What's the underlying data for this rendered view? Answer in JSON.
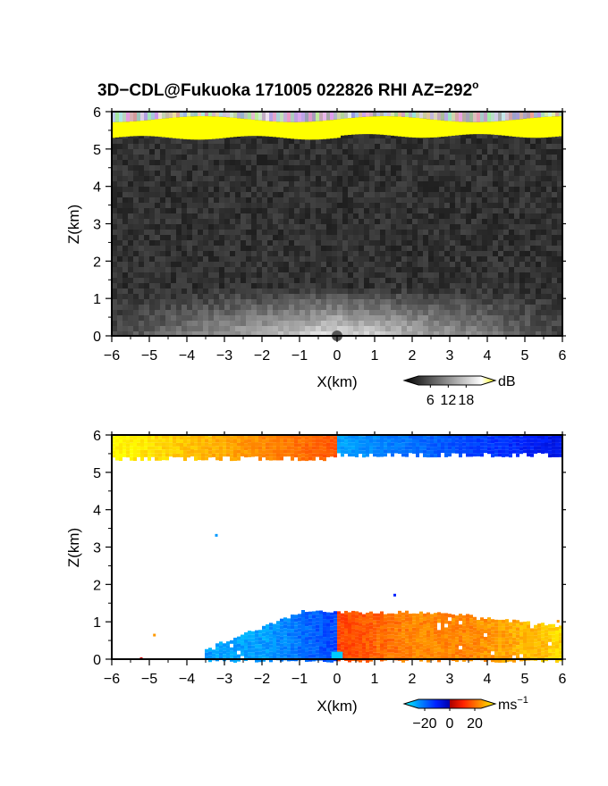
{
  "chart_data": [
    {
      "type": "heatmap",
      "title": "3D−CDL@Fukuoka 171005 022826 RHI AZ=292",
      "title_superscript": "o",
      "xlabel": "X(km)",
      "ylabel": "Z(km)",
      "xlim": [
        -6,
        6
      ],
      "ylim": [
        0,
        6
      ],
      "x_ticks": [
        "−6",
        "−5",
        "−4",
        "−3",
        "−2",
        "−1",
        "0",
        "1",
        "2",
        "3",
        "4",
        "5",
        "6"
      ],
      "y_ticks": [
        "0",
        "1",
        "2",
        "3",
        "4",
        "5",
        "6"
      ],
      "colorbar": {
        "unit": "dB",
        "ticks": [
          "6",
          "12",
          "18"
        ],
        "range": [
          0,
          21
        ]
      },
      "description_layers": [
        {
          "feature": "bright layer",
          "z_range": [
            5.3,
            5.9
          ],
          "value": 20
        },
        {
          "feature": "boundary layer",
          "z_range": [
            0,
            1.3
          ],
          "value": 10
        }
      ]
    },
    {
      "type": "heatmap",
      "xlabel": "X(km)",
      "ylabel": "Z(km)",
      "xlim": [
        -6,
        6
      ],
      "ylim": [
        0,
        6
      ],
      "x_ticks": [
        "−6",
        "−5",
        "−4",
        "−3",
        "−2",
        "−1",
        "0",
        "1",
        "2",
        "3",
        "4",
        "5",
        "6"
      ],
      "y_ticks": [
        "0",
        "1",
        "2",
        "3",
        "4",
        "5",
        "6"
      ],
      "colorbar": {
        "unit": "ms",
        "unit_exponent": "−1",
        "ticks": [
          "−20",
          "0",
          "20"
        ],
        "range": [
          -25,
          25
        ]
      },
      "description_layers": [
        {
          "feature": "upper layer",
          "z_range": [
            5.3,
            6.0
          ],
          "values": {
            "x_neg": 12,
            "x_pos": -18
          }
        },
        {
          "feature": "boundary layer",
          "z_range": [
            0,
            1.3
          ],
          "values": {
            "x_neg": -20,
            "x_pos": 14
          }
        }
      ]
    }
  ]
}
